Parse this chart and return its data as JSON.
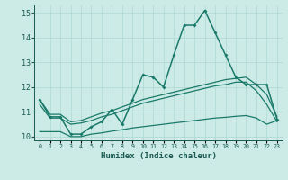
{
  "xlabel": "Humidex (Indice chaleur)",
  "x": [
    0,
    1,
    2,
    3,
    4,
    5,
    6,
    7,
    8,
    9,
    10,
    11,
    12,
    13,
    14,
    15,
    16,
    17,
    18,
    19,
    20,
    21,
    22,
    23
  ],
  "line1": [
    11.5,
    10.8,
    10.8,
    10.1,
    10.1,
    10.4,
    10.6,
    11.1,
    10.5,
    11.5,
    12.5,
    12.4,
    12.0,
    13.3,
    14.5,
    14.5,
    15.1,
    14.2,
    13.3,
    12.4,
    12.1,
    12.1,
    12.1,
    10.7
  ],
  "line2": [
    11.5,
    10.9,
    10.9,
    10.6,
    10.65,
    10.8,
    10.95,
    11.05,
    11.2,
    11.35,
    11.5,
    11.6,
    11.7,
    11.8,
    11.9,
    12.0,
    12.1,
    12.2,
    12.3,
    12.35,
    12.4,
    12.1,
    11.7,
    10.8
  ],
  "line3": [
    11.3,
    10.75,
    10.75,
    10.5,
    10.55,
    10.65,
    10.8,
    10.9,
    11.05,
    11.2,
    11.35,
    11.45,
    11.55,
    11.65,
    11.75,
    11.85,
    11.95,
    12.05,
    12.1,
    12.2,
    12.2,
    11.85,
    11.3,
    10.6
  ],
  "line4": [
    10.2,
    10.2,
    10.2,
    10.0,
    10.0,
    10.1,
    10.15,
    10.22,
    10.28,
    10.35,
    10.4,
    10.45,
    10.5,
    10.55,
    10.6,
    10.65,
    10.7,
    10.75,
    10.78,
    10.82,
    10.85,
    10.75,
    10.5,
    10.65
  ],
  "line_color": "#1a7a6a",
  "bg_color": "#cceae6",
  "grid_color": "#aed8d4",
  "text_color": "#1a5a52",
  "ylim": [
    9.85,
    15.3
  ],
  "yticks": [
    10,
    11,
    12,
    13,
    14,
    15
  ],
  "xlim": [
    -0.5,
    23.5
  ]
}
